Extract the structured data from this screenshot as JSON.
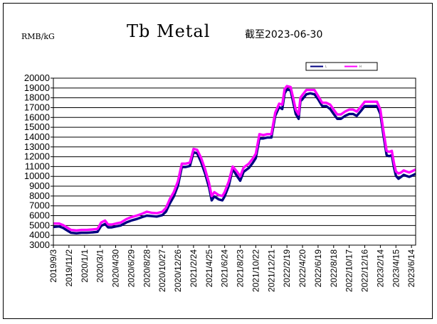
{
  "chart_data": {
    "type": "line",
    "title": "Tb Metal",
    "subtitle": "截至2023-06-30",
    "ylabel": "RMB/kG",
    "ylim": [
      3000,
      20000
    ],
    "ytick_step": 1000,
    "grid": "horizontal",
    "legend": "top-right",
    "x_tick_labels": [
      "2019/9/3",
      "2019/11/2",
      "2020/1/1",
      "2020/3/1",
      "2020/4/30",
      "2020/6/29",
      "2020/8/28",
      "2020/10/27",
      "2020/12/26",
      "2021/2/24",
      "2021/4/25",
      "2021/6/24",
      "2021/8/23",
      "2021/10/22",
      "2021/12/21",
      "2022/2/19",
      "2022/4/20",
      "2022/6/19",
      "2022/8/18",
      "2022/10/17",
      "2022/12/16",
      "2023/2/14",
      "2023/4/15",
      "2023/6/14"
    ],
    "x_range": [
      "2019/9/3",
      "2023/6/30"
    ],
    "series": [
      {
        "name": "L",
        "color": "#000080",
        "points": [
          [
            "2019/9/3",
            5000
          ],
          [
            "2019/9/25",
            5050
          ],
          [
            "2019/10/10",
            4900
          ],
          [
            "2019/10/25",
            4650
          ],
          [
            "2019/11/10",
            4400
          ],
          [
            "2019/12/1",
            4350
          ],
          [
            "2019/12/20",
            4400
          ],
          [
            "2020/1/10",
            4400
          ],
          [
            "2020/2/1",
            4450
          ],
          [
            "2020/2/20",
            4500
          ],
          [
            "2020/3/5",
            5100
          ],
          [
            "2020/3/20",
            5300
          ],
          [
            "2020/4/1",
            4950
          ],
          [
            "2020/4/15",
            4950
          ],
          [
            "2020/5/1",
            5050
          ],
          [
            "2020/5/20",
            5150
          ],
          [
            "2020/6/10",
            5450
          ],
          [
            "2020/6/29",
            5650
          ],
          [
            "2020/7/20",
            5800
          ],
          [
            "2020/8/10",
            6000
          ],
          [
            "2020/8/28",
            6150
          ],
          [
            "2020/9/15",
            6100
          ],
          [
            "2020/10/5",
            6050
          ],
          [
            "2020/10/27",
            6200
          ],
          [
            "2020/11/10",
            6550
          ],
          [
            "2020/11/25",
            7400
          ],
          [
            "2020/12/10",
            8100
          ],
          [
            "2020/12/26",
            9200
          ],
          [
            "2021/1/10",
            11100
          ],
          [
            "2021/1/25",
            11100
          ],
          [
            "2021/2/10",
            11200
          ],
          [
            "2021/2/24",
            12600
          ],
          [
            "2021/3/10",
            12500
          ],
          [
            "2021/3/25",
            11600
          ],
          [
            "2021/4/10",
            10400
          ],
          [
            "2021/4/25",
            9000
          ],
          [
            "2021/5/5",
            7700
          ],
          [
            "2021/5/15",
            8100
          ],
          [
            "2021/6/1",
            7800
          ],
          [
            "2021/6/15",
            7700
          ],
          [
            "2021/6/24",
            8100
          ],
          [
            "2021/7/10",
            9200
          ],
          [
            "2021/7/25",
            10900
          ],
          [
            "2021/8/10",
            10200
          ],
          [
            "2021/8/23",
            9700
          ],
          [
            "2021/9/5",
            10600
          ],
          [
            "2021/9/25",
            11000
          ],
          [
            "2021/10/10",
            11500
          ],
          [
            "2021/10/22",
            12000
          ],
          [
            "2021/11/5",
            14000
          ],
          [
            "2021/11/20",
            14000
          ],
          [
            "2021/12/5",
            14100
          ],
          [
            "2021/12/21",
            14100
          ],
          [
            "2022/1/5",
            16300
          ],
          [
            "2022/1/20",
            17200
          ],
          [
            "2022/2/1",
            17000
          ],
          [
            "2022/2/10",
            18600
          ],
          [
            "2022/2/19",
            19000
          ],
          [
            "2022/3/5",
            18900
          ],
          [
            "2022/3/15",
            17700
          ],
          [
            "2022/3/25",
            16500
          ],
          [
            "2022/4/5",
            16000
          ],
          [
            "2022/4/12",
            17800
          ],
          [
            "2022/4/20",
            18000
          ],
          [
            "2022/5/5",
            18500
          ],
          [
            "2022/5/20",
            18600
          ],
          [
            "2022/6/5",
            18500
          ],
          [
            "2022/6/19",
            18000
          ],
          [
            "2022/7/5",
            17300
          ],
          [
            "2022/7/20",
            17300
          ],
          [
            "2022/8/5",
            17000
          ],
          [
            "2022/8/18",
            16500
          ],
          [
            "2022/9/1",
            16000
          ],
          [
            "2022/9/15",
            16000
          ],
          [
            "2022/10/1",
            16300
          ],
          [
            "2022/10/17",
            16500
          ],
          [
            "2022/11/1",
            16500
          ],
          [
            "2022/11/15",
            16300
          ],
          [
            "2022/12/1",
            16800
          ],
          [
            "2022/12/16",
            17300
          ],
          [
            "2023/1/1",
            17300
          ],
          [
            "2023/1/15",
            17300
          ],
          [
            "2023/2/1",
            17300
          ],
          [
            "2023/2/14",
            16500
          ],
          [
            "2023/2/25",
            14500
          ],
          [
            "2023/3/10",
            12300
          ],
          [
            "2023/3/20",
            12200
          ],
          [
            "2023/3/30",
            12300
          ],
          [
            "2023/4/8",
            11000
          ],
          [
            "2023/4/15",
            10200
          ],
          [
            "2023/4/25",
            9900
          ],
          [
            "2023/5/5",
            10100
          ],
          [
            "2023/5/15",
            10300
          ],
          [
            "2023/5/25",
            10200
          ],
          [
            "2023/6/5",
            10100
          ],
          [
            "2023/6/14",
            10200
          ],
          [
            "2023/6/30",
            10400
          ]
        ]
      },
      {
        "name": "H",
        "color": "#ff00ff",
        "points": [
          [
            "2019/9/3",
            5200
          ],
          [
            "2019/9/25",
            5200
          ],
          [
            "2019/10/10",
            5050
          ],
          [
            "2019/10/25",
            4800
          ],
          [
            "2019/11/10",
            4550
          ],
          [
            "2019/12/1",
            4500
          ],
          [
            "2019/12/20",
            4550
          ],
          [
            "2020/1/10",
            4550
          ],
          [
            "2020/2/1",
            4600
          ],
          [
            "2020/2/20",
            4650
          ],
          [
            "2020/3/5",
            5300
          ],
          [
            "2020/3/20",
            5500
          ],
          [
            "2020/4/1",
            5100
          ],
          [
            "2020/4/15",
            5100
          ],
          [
            "2020/5/1",
            5200
          ],
          [
            "2020/5/20",
            5300
          ],
          [
            "2020/6/10",
            5650
          ],
          [
            "2020/6/29",
            5850
          ],
          [
            "2020/7/20",
            6000
          ],
          [
            "2020/8/10",
            6200
          ],
          [
            "2020/8/28",
            6400
          ],
          [
            "2020/9/15",
            6300
          ],
          [
            "2020/10/5",
            6250
          ],
          [
            "2020/10/27",
            6400
          ],
          [
            "2020/11/10",
            6800
          ],
          [
            "2020/11/25",
            7700
          ],
          [
            "2020/12/10",
            8400
          ],
          [
            "2020/12/26",
            9500
          ],
          [
            "2021/1/10",
            11300
          ],
          [
            "2021/1/25",
            11300
          ],
          [
            "2021/2/10",
            11400
          ],
          [
            "2021/2/24",
            12800
          ],
          [
            "2021/3/10",
            12700
          ],
          [
            "2021/3/25",
            11900
          ],
          [
            "2021/4/10",
            10700
          ],
          [
            "2021/4/25",
            9300
          ],
          [
            "2021/5/5",
            8000
          ],
          [
            "2021/5/15",
            8400
          ],
          [
            "2021/6/1",
            8100
          ],
          [
            "2021/6/15",
            8000
          ],
          [
            "2021/6/24",
            8400
          ],
          [
            "2021/7/10",
            9500
          ],
          [
            "2021/7/25",
            11000
          ],
          [
            "2021/8/10",
            10500
          ],
          [
            "2021/8/23",
            10000
          ],
          [
            "2021/9/5",
            10900
          ],
          [
            "2021/9/25",
            11300
          ],
          [
            "2021/10/10",
            11800
          ],
          [
            "2021/10/22",
            12300
          ],
          [
            "2021/11/5",
            14300
          ],
          [
            "2021/11/20",
            14200
          ],
          [
            "2021/12/5",
            14300
          ],
          [
            "2021/12/21",
            14300
          ],
          [
            "2022/1/5",
            16500
          ],
          [
            "2022/1/20",
            17400
          ],
          [
            "2022/2/1",
            17300
          ],
          [
            "2022/2/10",
            18900
          ],
          [
            "2022/2/19",
            19200
          ],
          [
            "2022/3/5",
            19100
          ],
          [
            "2022/3/15",
            18000
          ],
          [
            "2022/3/25",
            16800
          ],
          [
            "2022/4/5",
            16300
          ],
          [
            "2022/4/12",
            18000
          ],
          [
            "2022/4/20",
            18300
          ],
          [
            "2022/5/5",
            18800
          ],
          [
            "2022/5/20",
            18800
          ],
          [
            "2022/6/5",
            18800
          ],
          [
            "2022/6/19",
            18200
          ],
          [
            "2022/7/5",
            17500
          ],
          [
            "2022/7/20",
            17500
          ],
          [
            "2022/8/5",
            17300
          ],
          [
            "2022/8/18",
            16800
          ],
          [
            "2022/9/1",
            16300
          ],
          [
            "2022/9/15",
            16300
          ],
          [
            "2022/10/1",
            16600
          ],
          [
            "2022/10/17",
            16800
          ],
          [
            "2022/11/1",
            16800
          ],
          [
            "2022/11/15",
            16600
          ],
          [
            "2022/12/1",
            17100
          ],
          [
            "2022/12/16",
            17600
          ],
          [
            "2023/1/1",
            17600
          ],
          [
            "2023/1/15",
            17600
          ],
          [
            "2023/2/1",
            17600
          ],
          [
            "2023/2/14",
            16800
          ],
          [
            "2023/2/25",
            14800
          ],
          [
            "2023/3/10",
            12600
          ],
          [
            "2023/3/20",
            12500
          ],
          [
            "2023/3/30",
            12600
          ],
          [
            "2023/4/8",
            11300
          ],
          [
            "2023/4/15",
            10500
          ],
          [
            "2023/4/25",
            10300
          ],
          [
            "2023/5/5",
            10400
          ],
          [
            "2023/5/15",
            10600
          ],
          [
            "2023/5/25",
            10500
          ],
          [
            "2023/6/5",
            10400
          ],
          [
            "2023/6/14",
            10500
          ],
          [
            "2023/6/30",
            10700
          ]
        ]
      }
    ]
  }
}
